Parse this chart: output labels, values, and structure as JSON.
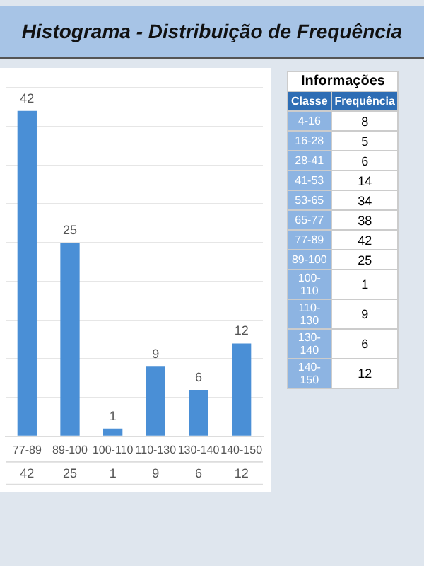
{
  "chart_data": [
    {
      "type": "bar",
      "title": "Histograma - Distribuição de Frequência",
      "categories": [
        "77-89",
        "89-100",
        "100-110",
        "110-130",
        "130-140",
        "140-150"
      ],
      "values": [
        42,
        25,
        1,
        9,
        6,
        12
      ],
      "value_labels": [
        "42",
        "25",
        "1",
        "9",
        "6",
        "12"
      ],
      "color": "#4a8fd6",
      "data_labels": true,
      "grid": "y",
      "ylim": [
        0,
        45
      ],
      "yticks": [
        {
          "value": 0,
          "label": null
        },
        {
          "value": 5,
          "label": null
        },
        {
          "value": 10,
          "label": null
        },
        {
          "value": 15,
          "label": null
        },
        {
          "value": 20,
          "label": null
        },
        {
          "value": 25,
          "label": null
        },
        {
          "value": 30,
          "label": null
        },
        {
          "value": 35,
          "label": null
        },
        {
          "value": 40,
          "label": null
        },
        {
          "value": 45,
          "label": null
        }
      ],
      "tick_labels": "x",
      "legend": false
    },
    {
      "type": "other",
      "title": "Informações",
      "xlabel": "Classe",
      "ylabel": "Frequência",
      "categories": [
        "4-16",
        "16-28",
        "28-41",
        "41-53",
        "53-65",
        "65-77",
        "77-89",
        "89-100",
        "100-110",
        "110-130",
        "130-140",
        "140-150"
      ],
      "values": [
        8,
        5,
        6,
        14,
        34,
        38,
        42,
        25,
        1,
        9,
        6,
        12
      ],
      "value_labels": [
        "8",
        "5",
        "6",
        "14",
        "34",
        "38",
        "42",
        "25",
        "1",
        "9",
        "6",
        "12"
      ],
      "data_labels": true
    }
  ]
}
